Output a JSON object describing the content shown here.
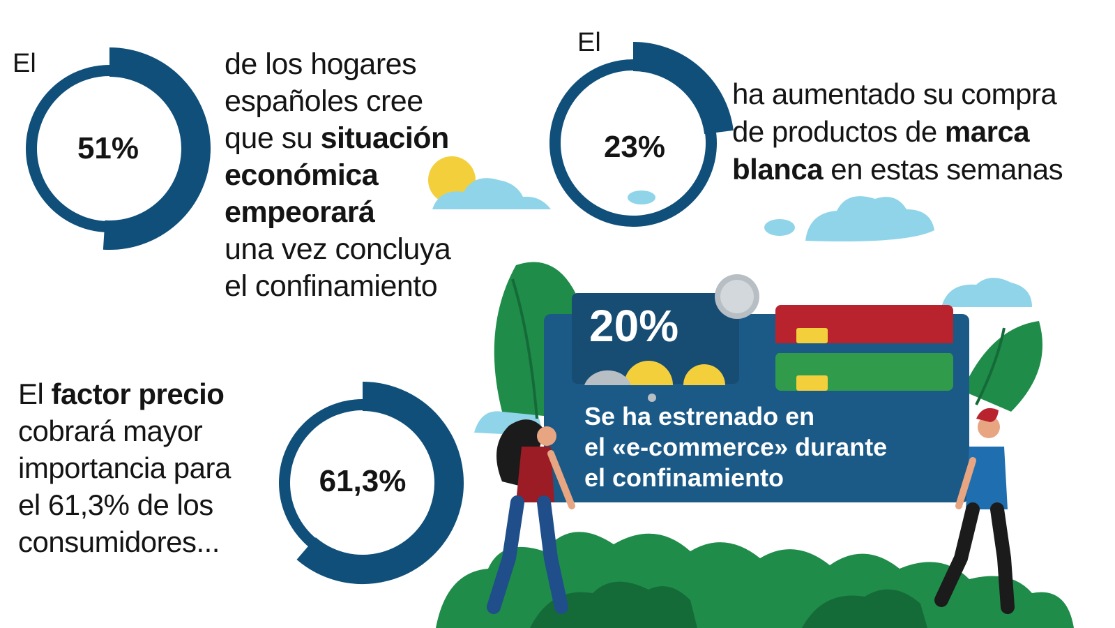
{
  "stat1": {
    "lead": "El",
    "value": "51%",
    "fraction": 0.51,
    "lines": [
      "de los hogares",
      "españoles cree"
    ],
    "line3_pre": "que su ",
    "line3_bold": "situación",
    "bold_lines": [
      "económica",
      "empeorará"
    ],
    "tail_lines": [
      "una vez concluya",
      "el confinamiento"
    ]
  },
  "stat2": {
    "lead": "El",
    "value": "23%",
    "fraction": 0.23,
    "line1": "ha aumentado su compra",
    "line2_pre": "de productos de ",
    "line2_bold": "marca",
    "line3_bold": "blanca",
    "line3_post": " en estas semanas"
  },
  "stat3": {
    "lead_pre": "El ",
    "lead_bold": "factor precio",
    "lines": [
      "cobrará mayor",
      "importancia para",
      "el 61,3% de los",
      "consumidores..."
    ],
    "value": "61,3%",
    "fraction": 0.613
  },
  "stat4": {
    "value": "20%",
    "lines": [
      "Se ha estrenado en",
      "el «e-commerce» durante",
      "el confinamiento"
    ]
  },
  "colors": {
    "ring": "#0f4f7a",
    "ring_dark": "#0a3f63",
    "card": "#1b5a86",
    "card_dark": "#174c73",
    "green": "#1f8c4a",
    "green_dark": "#156b38",
    "cloud": "#8fd4e8",
    "sun": "#f3cf3c",
    "red_card": "#b8232d",
    "green_card": "#2f9b4b"
  }
}
